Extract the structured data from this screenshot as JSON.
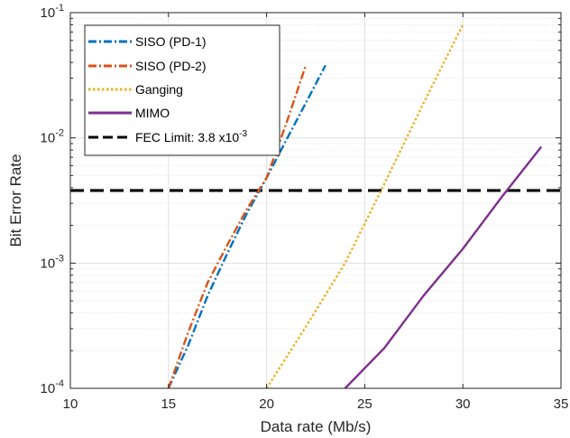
{
  "chart_data": {
    "type": "line",
    "xlabel": "Data rate (Mb/s)",
    "ylabel": "Bit Error Rate",
    "xlim": [
      10,
      35
    ],
    "ylim": [
      0.0001,
      0.1
    ],
    "y_scale": "log",
    "x_ticks": [
      10,
      15,
      20,
      25,
      30,
      35
    ],
    "x_tick_labels": [
      "10",
      "15",
      "20",
      "25",
      "30",
      "35"
    ],
    "y_ticks": [
      0.0001,
      0.001,
      0.01,
      0.1
    ],
    "y_tick_labels": [
      {
        "base": "10",
        "exp": "-4"
      },
      {
        "base": "10",
        "exp": "-3"
      },
      {
        "base": "10",
        "exp": "-2"
      },
      {
        "base": "10",
        "exp": "-1"
      }
    ],
    "grid": true,
    "legend_position": "top-left",
    "series": [
      {
        "name": "SISO (PD-1)",
        "color": "#0072BD",
        "style": "dash-dot",
        "x": [
          15,
          16,
          17,
          18,
          19,
          20,
          21,
          22,
          23
        ],
        "y": [
          0.0001,
          0.00022,
          0.00055,
          0.0012,
          0.0025,
          0.0048,
          0.0096,
          0.019,
          0.038
        ]
      },
      {
        "name": "SISO (PD-2)",
        "color": "#D95319",
        "style": "dash-dot",
        "x": [
          15,
          16,
          17,
          18,
          19,
          20,
          21,
          22
        ],
        "y": [
          0.0001,
          0.00028,
          0.0007,
          0.0014,
          0.0027,
          0.0048,
          0.013,
          0.038
        ]
      },
      {
        "name": "Ganging",
        "color": "#EDB120",
        "style": "dotted",
        "x": [
          20,
          22,
          24,
          26,
          28,
          30
        ],
        "y": [
          0.0001,
          0.00031,
          0.001,
          0.0043,
          0.019,
          0.08
        ]
      },
      {
        "name": "MIMO",
        "color": "#7E2F8E",
        "style": "solid",
        "x": [
          24,
          26,
          28,
          30,
          32,
          34
        ],
        "y": [
          0.0001,
          0.00021,
          0.00055,
          0.0013,
          0.0034,
          0.0085
        ]
      }
    ],
    "reference_lines": [
      {
        "name": "FEC Limit: 3.8 x10",
        "name_exp": "-3",
        "y": 0.0038,
        "color": "#000000",
        "style": "dashed"
      }
    ]
  }
}
